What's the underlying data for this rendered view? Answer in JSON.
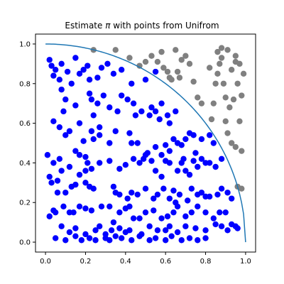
{
  "chart_data": {
    "type": "scatter",
    "title_prefix": "Estimate ",
    "title_symbol": "π",
    "title_suffix": " with points from Unifrom",
    "xlabel": "",
    "ylabel": "",
    "xlim": [
      -0.05,
      1.05
    ],
    "ylim": [
      -0.05,
      1.05
    ],
    "xticks": [
      0.0,
      0.2,
      0.4,
      0.6,
      0.8,
      1.0
    ],
    "yticks": [
      0.0,
      0.2,
      0.4,
      0.6,
      0.8,
      1.0
    ],
    "xtick_labels": [
      "0.0",
      "0.2",
      "0.4",
      "0.6",
      "0.8",
      "1.0"
    ],
    "ytick_labels": [
      "0.0",
      "0.2",
      "0.4",
      "0.6",
      "0.8",
      "1.0"
    ],
    "grid": false,
    "legend": "none",
    "curve": {
      "name": "",
      "color": "#1f77b4",
      "function": "sqrt(1 - x^2)",
      "x_range": [
        0.0,
        1.0
      ]
    },
    "series": [
      {
        "name": "",
        "color": "#0000ff",
        "points": [
          [
            0.02,
            0.92
          ],
          [
            0.03,
            0.89
          ],
          [
            0.05,
            0.87
          ],
          [
            0.04,
            0.84
          ],
          [
            0.08,
            0.9
          ],
          [
            0.07,
            0.82
          ],
          [
            0.11,
            0.86
          ],
          [
            0.13,
            0.8
          ],
          [
            0.15,
            0.93
          ],
          [
            0.17,
            0.85
          ],
          [
            0.19,
            0.87
          ],
          [
            0.21,
            0.89
          ],
          [
            0.22,
            0.82
          ],
          [
            0.26,
            0.83
          ],
          [
            0.28,
            0.88
          ],
          [
            0.31,
            0.9
          ],
          [
            0.34,
            0.85
          ],
          [
            0.38,
            0.87
          ],
          [
            0.43,
            0.8
          ],
          [
            0.5,
            0.82
          ],
          [
            0.55,
            0.86
          ],
          [
            0.08,
            0.77
          ],
          [
            0.1,
            0.72
          ],
          [
            0.09,
            0.66
          ],
          [
            0.15,
            0.69
          ],
          [
            0.22,
            0.75
          ],
          [
            0.23,
            0.72
          ],
          [
            0.24,
            0.64
          ],
          [
            0.26,
            0.7
          ],
          [
            0.29,
            0.74
          ],
          [
            0.32,
            0.68
          ],
          [
            0.36,
            0.66
          ],
          [
            0.38,
            0.74
          ],
          [
            0.41,
            0.72
          ],
          [
            0.44,
            0.7
          ],
          [
            0.45,
            0.64
          ],
          [
            0.48,
            0.66
          ],
          [
            0.52,
            0.64
          ],
          [
            0.53,
            0.68
          ],
          [
            0.55,
            0.66
          ],
          [
            0.57,
            0.62
          ],
          [
            0.58,
            0.7
          ],
          [
            0.61,
            0.64
          ],
          [
            0.62,
            0.6
          ],
          [
            0.65,
            0.66
          ],
          [
            0.04,
            0.61
          ],
          [
            0.07,
            0.58
          ],
          [
            0.1,
            0.54
          ],
          [
            0.12,
            0.56
          ],
          [
            0.17,
            0.6
          ],
          [
            0.19,
            0.51
          ],
          [
            0.23,
            0.56
          ],
          [
            0.24,
            0.52
          ],
          [
            0.27,
            0.58
          ],
          [
            0.27,
            0.54
          ],
          [
            0.32,
            0.5
          ],
          [
            0.35,
            0.56
          ],
          [
            0.42,
            0.55
          ],
          [
            0.43,
            0.5
          ],
          [
            0.46,
            0.5
          ],
          [
            0.49,
            0.42
          ],
          [
            0.51,
            0.45
          ],
          [
            0.55,
            0.48
          ],
          [
            0.58,
            0.44
          ],
          [
            0.6,
            0.49
          ],
          [
            0.62,
            0.46
          ],
          [
            0.64,
            0.52
          ],
          [
            0.66,
            0.5
          ],
          [
            0.68,
            0.49
          ],
          [
            0.7,
            0.52
          ],
          [
            0.72,
            0.55
          ],
          [
            0.74,
            0.54
          ],
          [
            0.75,
            0.45
          ],
          [
            0.78,
            0.52
          ],
          [
            0.82,
            0.54
          ],
          [
            0.84,
            0.5
          ],
          [
            0.01,
            0.44
          ],
          [
            0.04,
            0.4
          ],
          [
            0.07,
            0.42
          ],
          [
            0.08,
            0.36
          ],
          [
            0.12,
            0.38
          ],
          [
            0.15,
            0.46
          ],
          [
            0.17,
            0.44
          ],
          [
            0.2,
            0.43
          ],
          [
            0.2,
            0.36
          ],
          [
            0.21,
            0.4
          ],
          [
            0.23,
            0.37
          ],
          [
            0.27,
            0.4
          ],
          [
            0.32,
            0.41
          ],
          [
            0.37,
            0.37
          ],
          [
            0.4,
            0.39
          ],
          [
            0.44,
            0.42
          ],
          [
            0.47,
            0.4
          ],
          [
            0.5,
            0.44
          ],
          [
            0.53,
            0.41
          ],
          [
            0.55,
            0.36
          ],
          [
            0.58,
            0.33
          ],
          [
            0.6,
            0.41
          ],
          [
            0.62,
            0.4
          ],
          [
            0.66,
            0.36
          ],
          [
            0.68,
            0.4
          ],
          [
            0.69,
            0.42
          ],
          [
            0.7,
            0.36
          ],
          [
            0.72,
            0.34
          ],
          [
            0.74,
            0.41
          ],
          [
            0.76,
            0.38
          ],
          [
            0.78,
            0.42
          ],
          [
            0.8,
            0.4
          ],
          [
            0.82,
            0.4
          ],
          [
            0.85,
            0.38
          ],
          [
            0.88,
            0.42
          ],
          [
            0.02,
            0.33
          ],
          [
            0.03,
            0.3
          ],
          [
            0.06,
            0.31
          ],
          [
            0.06,
            0.25
          ],
          [
            0.1,
            0.25
          ],
          [
            0.13,
            0.28
          ],
          [
            0.15,
            0.29
          ],
          [
            0.17,
            0.34
          ],
          [
            0.2,
            0.3
          ],
          [
            0.22,
            0.28
          ],
          [
            0.24,
            0.27
          ],
          [
            0.34,
            0.28
          ],
          [
            0.35,
            0.25
          ],
          [
            0.37,
            0.24
          ],
          [
            0.41,
            0.22
          ],
          [
            0.43,
            0.25
          ],
          [
            0.46,
            0.24
          ],
          [
            0.5,
            0.27
          ],
          [
            0.54,
            0.22
          ],
          [
            0.56,
            0.24
          ],
          [
            0.59,
            0.27
          ],
          [
            0.62,
            0.22
          ],
          [
            0.64,
            0.26
          ],
          [
            0.65,
            0.2
          ],
          [
            0.67,
            0.24
          ],
          [
            0.71,
            0.21
          ],
          [
            0.73,
            0.27
          ],
          [
            0.76,
            0.24
          ],
          [
            0.78,
            0.25
          ],
          [
            0.8,
            0.23
          ],
          [
            0.82,
            0.23
          ],
          [
            0.86,
            0.24
          ],
          [
            0.88,
            0.27
          ],
          [
            0.91,
            0.25
          ],
          [
            0.93,
            0.22
          ],
          [
            0.02,
            0.13
          ],
          [
            0.04,
            0.16
          ],
          [
            0.05,
            0.15
          ],
          [
            0.09,
            0.18
          ],
          [
            0.12,
            0.15
          ],
          [
            0.14,
            0.15
          ],
          [
            0.17,
            0.18
          ],
          [
            0.2,
            0.17
          ],
          [
            0.23,
            0.16
          ],
          [
            0.28,
            0.18
          ],
          [
            0.32,
            0.18
          ],
          [
            0.34,
            0.1
          ],
          [
            0.37,
            0.15
          ],
          [
            0.4,
            0.17
          ],
          [
            0.42,
            0.18
          ],
          [
            0.44,
            0.12
          ],
          [
            0.47,
            0.12
          ],
          [
            0.5,
            0.15
          ],
          [
            0.54,
            0.16
          ],
          [
            0.58,
            0.12
          ],
          [
            0.61,
            0.13
          ],
          [
            0.64,
            0.15
          ],
          [
            0.66,
            0.18
          ],
          [
            0.7,
            0.13
          ],
          [
            0.73,
            0.15
          ],
          [
            0.76,
            0.18
          ],
          [
            0.8,
            0.15
          ],
          [
            0.84,
            0.12
          ],
          [
            0.87,
            0.15
          ],
          [
            0.9,
            0.15
          ],
          [
            0.08,
            0.08
          ],
          [
            0.12,
            0.05
          ],
          [
            0.15,
            0.07
          ],
          [
            0.2,
            0.04
          ],
          [
            0.25,
            0.06
          ],
          [
            0.27,
            0.08
          ],
          [
            0.3,
            0.04
          ],
          [
            0.33,
            0.06
          ],
          [
            0.37,
            0.07
          ],
          [
            0.4,
            0.05
          ],
          [
            0.42,
            0.06
          ],
          [
            0.48,
            0.04
          ],
          [
            0.52,
            0.08
          ],
          [
            0.56,
            0.06
          ],
          [
            0.6,
            0.06
          ],
          [
            0.62,
            0.08
          ],
          [
            0.66,
            0.05
          ],
          [
            0.7,
            0.08
          ],
          [
            0.75,
            0.07
          ],
          [
            0.8,
            0.06
          ],
          [
            0.85,
            0.09
          ],
          [
            0.88,
            0.08
          ],
          [
            0.91,
            0.06
          ],
          [
            0.93,
            0.09
          ],
          [
            0.95,
            0.08
          ],
          [
            0.96,
            0.07
          ],
          [
            0.05,
            0.02
          ],
          [
            0.1,
            0.01
          ],
          [
            0.15,
            0.03
          ],
          [
            0.18,
            0.01
          ],
          [
            0.22,
            0.02
          ],
          [
            0.25,
            0.01
          ],
          [
            0.3,
            0.02
          ],
          [
            0.32,
            0.01
          ],
          [
            0.35,
            0.03
          ],
          [
            0.38,
            0.02
          ],
          [
            0.43,
            0.01
          ],
          [
            0.47,
            0.03
          ],
          [
            0.52,
            0.01
          ],
          [
            0.55,
            0.02
          ],
          [
            0.6,
            0.01
          ],
          [
            0.63,
            0.03
          ],
          [
            0.68,
            0.01
          ],
          [
            0.72,
            0.02
          ],
          [
            0.76,
            0.01
          ],
          [
            0.8,
            0.02
          ]
        ]
      },
      {
        "name": "",
        "color": "#808080",
        "points": [
          [
            0.24,
            0.97
          ],
          [
            0.35,
            0.97
          ],
          [
            0.42,
            0.93
          ],
          [
            0.47,
            0.89
          ],
          [
            0.5,
            0.91
          ],
          [
            0.53,
            0.94
          ],
          [
            0.56,
            0.91
          ],
          [
            0.58,
            0.96
          ],
          [
            0.59,
            0.88
          ],
          [
            0.61,
            0.86
          ],
          [
            0.62,
            0.83
          ],
          [
            0.63,
            0.82
          ],
          [
            0.65,
            0.97
          ],
          [
            0.66,
            0.86
          ],
          [
            0.67,
            0.83
          ],
          [
            0.68,
            0.92
          ],
          [
            0.7,
            0.94
          ],
          [
            0.72,
            0.9
          ],
          [
            0.74,
            0.81
          ],
          [
            0.76,
            0.73
          ],
          [
            0.78,
            0.7
          ],
          [
            0.82,
            0.88
          ],
          [
            0.83,
            0.62
          ],
          [
            0.84,
            0.7
          ],
          [
            0.85,
            0.8
          ],
          [
            0.86,
            0.85
          ],
          [
            0.87,
            0.9
          ],
          [
            0.88,
            0.98
          ],
          [
            0.89,
            0.8
          ],
          [
            0.9,
            0.61
          ],
          [
            0.92,
            0.68
          ],
          [
            0.93,
            0.87
          ],
          [
            0.94,
            0.72
          ],
          [
            0.95,
            0.94
          ],
          [
            0.96,
            0.8
          ],
          [
            0.97,
            0.61
          ],
          [
            0.98,
            0.74
          ],
          [
            0.99,
            0.85
          ],
          [
            0.91,
            0.55
          ],
          [
            0.93,
            0.5
          ],
          [
            0.95,
            0.48
          ],
          [
            0.98,
            0.46
          ],
          [
            0.96,
            0.28
          ],
          [
            0.98,
            0.27
          ],
          [
            0.86,
            0.96
          ],
          [
            0.88,
            0.93
          ],
          [
            0.91,
            0.97
          ],
          [
            0.95,
            0.91
          ],
          [
            0.97,
            0.9
          ],
          [
            0.9,
            0.73
          ]
        ]
      }
    ]
  }
}
